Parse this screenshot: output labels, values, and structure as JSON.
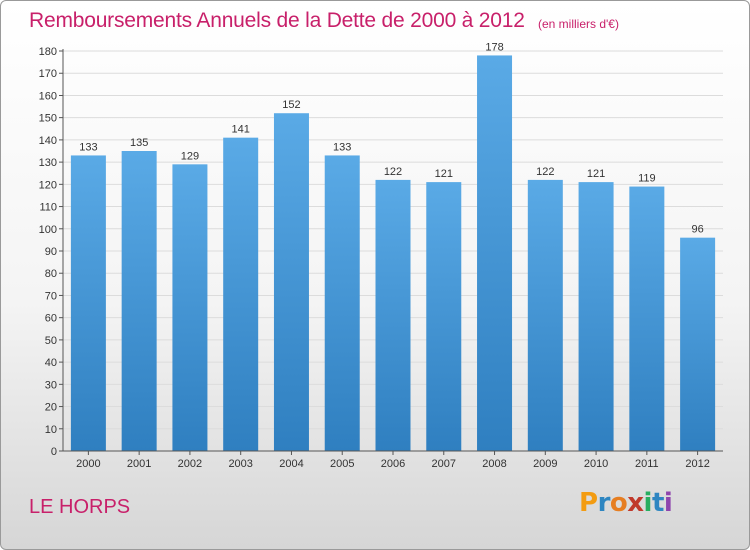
{
  "header": {
    "title": "Remboursements Annuels de la Dette de 2000 à 2012",
    "subtitle": "(en milliers d'€)"
  },
  "footer": {
    "place": "LE HORPS",
    "logo_text": "Proxiti",
    "logo_colors": [
      "#f39c12",
      "#2e86c1",
      "#e67e22",
      "#c0392b",
      "#27ae60",
      "#2e86c1",
      "#8e44ad"
    ]
  },
  "colors": {
    "bar_top": "#5aaae6",
    "bar_bottom": "#2f7fc0",
    "accent": "#c8206a"
  },
  "chart_data": {
    "type": "bar",
    "title": "Remboursements Annuels de la Dette de 2000 à 2012",
    "subtitle": "(en milliers d'€)",
    "categories": [
      "2000",
      "2001",
      "2002",
      "2003",
      "2004",
      "2005",
      "2006",
      "2007",
      "2008",
      "2009",
      "2010",
      "2011",
      "2012"
    ],
    "values": [
      133,
      135,
      129,
      141,
      152,
      133,
      122,
      121,
      178,
      122,
      121,
      119,
      96
    ],
    "data_labels": [
      "133",
      "135",
      "129",
      "141",
      "152",
      "133",
      "122",
      "121",
      "178",
      "122",
      "121",
      "119",
      "96"
    ],
    "ylim": [
      0,
      180
    ],
    "yticks": [
      "0",
      "10",
      "20",
      "30",
      "40",
      "50",
      "60",
      "70",
      "80",
      "90",
      "100",
      "110",
      "120",
      "130",
      "140",
      "150",
      "160",
      "170",
      "180"
    ],
    "grid": true,
    "legend": "none"
  }
}
